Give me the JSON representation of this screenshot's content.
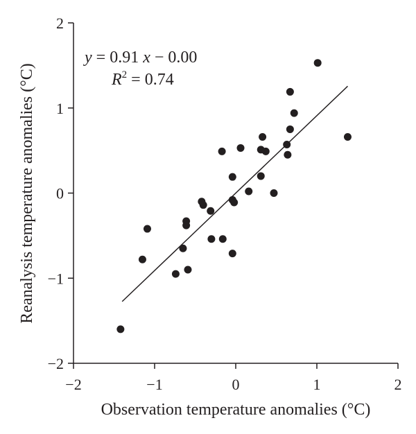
{
  "chart_data": {
    "type": "scatter",
    "title": "",
    "xlabel": "Observation temperature anomalies (°C)",
    "ylabel": "Reanalysis temperature anomalies (°C)",
    "xlim": [
      -2,
      2
    ],
    "ylim": [
      -2,
      2
    ],
    "x_ticks": [
      -2,
      -1,
      0,
      1,
      2
    ],
    "y_ticks": [
      -2,
      -1,
      0,
      1,
      2
    ],
    "x_tick_labels": [
      "−2",
      "−1",
      "0",
      "1",
      "2"
    ],
    "y_tick_labels": [
      "−2",
      "−1",
      "0",
      "1",
      "2"
    ],
    "grid": false,
    "points": [
      {
        "x": -1.42,
        "y": -1.6
      },
      {
        "x": -1.15,
        "y": -0.78
      },
      {
        "x": -1.09,
        "y": -0.42
      },
      {
        "x": -0.74,
        "y": -0.95
      },
      {
        "x": -0.65,
        "y": -0.65
      },
      {
        "x": -0.61,
        "y": -0.33
      },
      {
        "x": -0.61,
        "y": -0.38
      },
      {
        "x": -0.59,
        "y": -0.9
      },
      {
        "x": -0.42,
        "y": -0.1
      },
      {
        "x": -0.4,
        "y": -0.14
      },
      {
        "x": -0.31,
        "y": -0.21
      },
      {
        "x": -0.3,
        "y": -0.54
      },
      {
        "x": -0.17,
        "y": 0.49
      },
      {
        "x": -0.16,
        "y": -0.54
      },
      {
        "x": -0.04,
        "y": 0.19
      },
      {
        "x": -0.04,
        "y": -0.71
      },
      {
        "x": -0.04,
        "y": -0.08
      },
      {
        "x": -0.02,
        "y": -0.11
      },
      {
        "x": 0.06,
        "y": 0.53
      },
      {
        "x": 0.16,
        "y": 0.02
      },
      {
        "x": 0.31,
        "y": 0.51
      },
      {
        "x": 0.31,
        "y": 0.2
      },
      {
        "x": 0.33,
        "y": 0.66
      },
      {
        "x": 0.37,
        "y": 0.49
      },
      {
        "x": 0.47,
        "y": 0.0
      },
      {
        "x": 0.63,
        "y": 0.57
      },
      {
        "x": 0.64,
        "y": 0.45
      },
      {
        "x": 0.67,
        "y": 0.75
      },
      {
        "x": 0.67,
        "y": 1.19
      },
      {
        "x": 0.72,
        "y": 0.94
      },
      {
        "x": 1.01,
        "y": 1.53
      },
      {
        "x": 1.38,
        "y": 0.66
      }
    ],
    "fit_line": {
      "slope": 0.91,
      "intercept": 0.0,
      "x_range": [
        -1.4,
        1.38
      ]
    },
    "annotations": {
      "equation": {
        "y_var": "y",
        "eq_text": " = 0.91 ",
        "x_var": "x",
        "tail": " − 0.00"
      },
      "r_squared": {
        "var": "R",
        "exponent": "2",
        "value_text": " = 0.74"
      }
    },
    "colors": {
      "points": "#231f20",
      "line": "#231f20",
      "axis": "#231f20"
    }
  }
}
